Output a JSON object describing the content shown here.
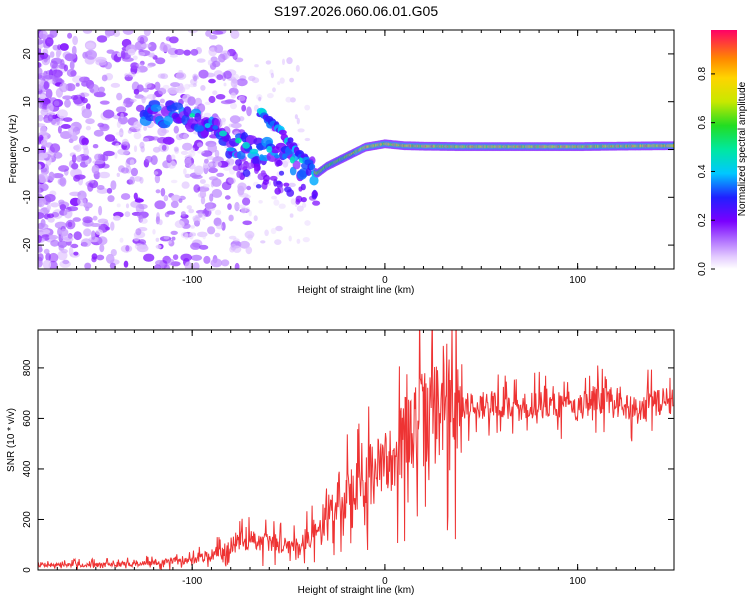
{
  "title": "S197.2026.060.06.01.G05",
  "chart_data": [
    {
      "type": "heatmap",
      "name": "spectrogram",
      "xlabel": "Height of straight line (km)",
      "ylabel": "Frequency (Hz)",
      "xlim": [
        -180,
        150
      ],
      "ylim": [
        -25,
        25
      ],
      "xticks": [
        -100,
        0,
        100
      ],
      "yticks": [
        20,
        10,
        0,
        -10,
        -20
      ],
      "ridge": {
        "x": [
          -120,
          -100,
          -90,
          -80,
          -70,
          -60,
          -50,
          -45,
          -40,
          -35,
          -30,
          -20,
          -10,
          0,
          10,
          20,
          40,
          60,
          80,
          100,
          120,
          150
        ],
        "y": [
          8,
          7,
          4,
          1,
          0,
          -1,
          -2,
          -3,
          -4,
          -5,
          -3.5,
          -1.5,
          0.5,
          1.2,
          0.8,
          0.7,
          0.6,
          0.6,
          0.6,
          0.6,
          0.7,
          0.8
        ]
      },
      "upper_branch": {
        "x": [
          -65,
          -60,
          -55,
          -50,
          -45,
          -40,
          -36
        ],
        "y": [
          8,
          6,
          4,
          2,
          -0.5,
          -3,
          -5
        ]
      },
      "colorbar": {
        "label": "Normalized spectral amplitude",
        "ticks": [
          "0.0",
          "0.2",
          "0.4",
          "0.6",
          "0.8"
        ],
        "range": [
          0,
          0.98
        ]
      }
    },
    {
      "type": "line",
      "name": "snr",
      "xlabel": "Height of straight line (km)",
      "ylabel": "SNR (10 * v/v)",
      "xlim": [
        -180,
        150
      ],
      "ylim": [
        0,
        950
      ],
      "xticks": [
        -100,
        0,
        100
      ],
      "yticks": [
        0,
        200,
        400,
        600,
        800
      ],
      "color": "#ee3333",
      "series": [
        {
          "name": "SNR",
          "x": [
            -180,
            -160,
            -140,
            -120,
            -100,
            -90,
            -80,
            -70,
            -60,
            -50,
            -45,
            -40,
            -35,
            -30,
            -25,
            -20,
            -15,
            -10,
            -5,
            0,
            5,
            10,
            15,
            20,
            30,
            40,
            50,
            60,
            70,
            80,
            90,
            100,
            110,
            120,
            130,
            140,
            150
          ],
          "y": [
            22,
            20,
            22,
            28,
            40,
            60,
            95,
            120,
            110,
            100,
            110,
            130,
            150,
            230,
            260,
            300,
            330,
            360,
            390,
            420,
            470,
            520,
            570,
            600,
            630,
            650,
            655,
            650,
            640,
            655,
            650,
            640,
            680,
            650,
            640,
            660,
            670
          ]
        }
      ]
    }
  ]
}
